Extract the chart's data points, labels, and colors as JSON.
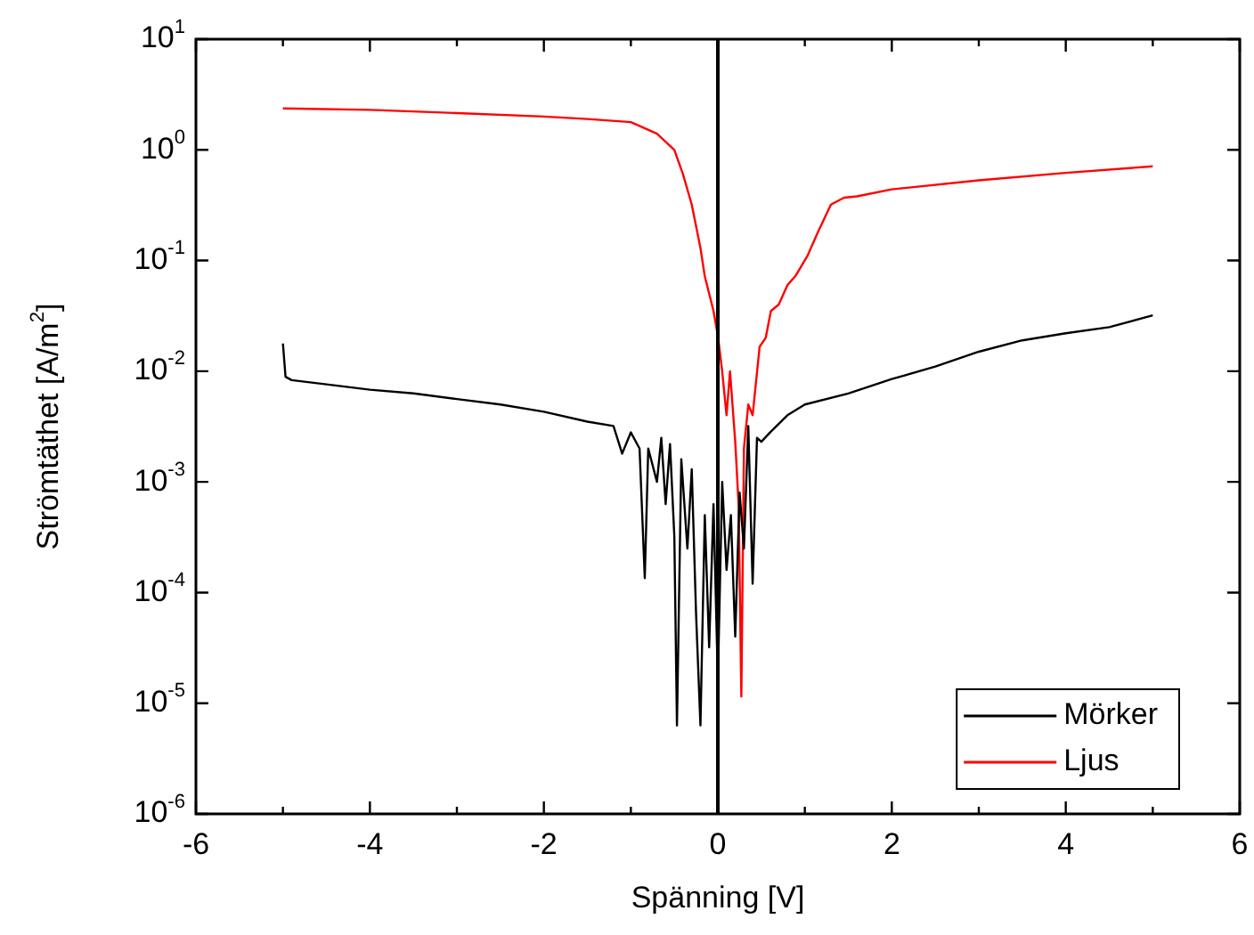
{
  "chart_data": {
    "type": "line",
    "xlabel": "Spänning [V]",
    "ylabel": "Strömtäthet [A/m$^{2}$]",
    "log": "y",
    "xlim": [
      -6,
      6
    ],
    "ylim": [
      1e-06,
      10
    ],
    "xticks": [
      -6,
      {
        "value": -5,
        "label": null
      },
      -4,
      {
        "value": -3,
        "label": null
      },
      -2,
      {
        "value": -1,
        "label": null
      },
      0,
      {
        "value": 1,
        "label": null
      },
      2,
      {
        "value": 3,
        "label": null
      },
      4,
      {
        "value": 5,
        "label": null
      },
      6
    ],
    "yticks": [
      {
        "value": 1e-06,
        "label": "10$^{-6}$"
      },
      {
        "value": 1e-05,
        "label": "10$^{-5}$"
      },
      {
        "value": 0.0001,
        "label": "10$^{-4}$"
      },
      {
        "value": 0.001,
        "label": "10$^{-3}$"
      },
      {
        "value": 0.01,
        "label": "10$^{-2}$"
      },
      {
        "value": 0.1,
        "label": "10$^{-1}$"
      },
      {
        "value": 1,
        "label": "10$^{0}$"
      },
      {
        "value": 10,
        "label": "10$^{1}$"
      }
    ],
    "grid": false,
    "legend": "bottom right",
    "marker": "none",
    "line_style": "solid",
    "ref_lines": [
      {
        "axis": "x",
        "value": 0,
        "color": "#000000"
      }
    ],
    "series": [
      {
        "name": "Mörker",
        "color": "#000000",
        "x": [
          -5,
          -4.97,
          -4.9,
          -4.5,
          -4,
          -3.5,
          -3,
          -2.5,
          -2,
          -1.5,
          -1.2,
          -1.1,
          -1.0,
          -0.9,
          -0.84,
          -0.8,
          -0.7,
          -0.65,
          -0.6,
          -0.55,
          -0.5,
          -0.47,
          -0.42,
          -0.35,
          -0.3,
          -0.25,
          -0.2,
          -0.15,
          -0.1,
          -0.05,
          0,
          0.05,
          0.1,
          0.15,
          0.2,
          0.25,
          0.3,
          0.35,
          0.4,
          0.45,
          0.5,
          0.6,
          0.8,
          1,
          1.5,
          2,
          2.5,
          3,
          3.5,
          4,
          4.5,
          5
        ],
        "values": [
          0.0178,
          0.0089,
          0.0083,
          0.0076,
          0.0068,
          0.0063,
          0.0056,
          0.005,
          0.0043,
          0.0035,
          0.0032,
          0.0018,
          0.0028,
          0.002,
          0.000135,
          0.002,
          0.001,
          0.0025,
          0.00063,
          0.0022,
          0.00032,
          6.3e-06,
          0.0016,
          0.00025,
          0.0013,
          6.3e-05,
          6.3e-06,
          0.0005,
          3.2e-05,
          0.00063,
          1.6e-05,
          0.001,
          0.00016,
          0.0005,
          4e-05,
          0.0008,
          0.00025,
          0.0032,
          0.00012,
          0.0025,
          0.0023,
          0.0028,
          0.004,
          0.005,
          0.0063,
          0.0085,
          0.011,
          0.015,
          0.019,
          0.022,
          0.025,
          0.032
        ]
      },
      {
        "name": "Ljus",
        "color": "#ff0000",
        "x": [
          -5,
          -4,
          -3,
          -2,
          -1.5,
          -1,
          -0.7,
          -0.5,
          -0.4,
          -0.3,
          -0.2,
          -0.15,
          -0.05,
          0,
          0.05,
          0.1,
          0.14,
          0.2,
          0.24,
          0.27,
          0.3,
          0.35,
          0.4,
          0.48,
          0.55,
          0.61,
          0.7,
          0.8,
          0.89,
          1.03,
          1.15,
          1.3,
          1.45,
          1.6,
          2,
          3,
          4,
          5
        ],
        "values": [
          2.37,
          2.3,
          2.15,
          2.0,
          1.9,
          1.78,
          1.4,
          1.0,
          0.6,
          0.32,
          0.13,
          0.072,
          0.035,
          0.021,
          0.01,
          0.004,
          0.01,
          0.0023,
          0.0006,
          1.15e-05,
          0.002,
          0.005,
          0.004,
          0.0166,
          0.02,
          0.035,
          0.04,
          0.06,
          0.072,
          0.11,
          0.18,
          0.32,
          0.37,
          0.38,
          0.44,
          0.53,
          0.62,
          0.71
        ]
      }
    ]
  }
}
